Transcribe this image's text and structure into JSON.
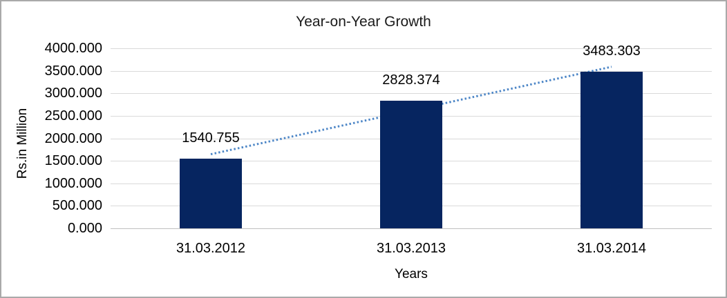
{
  "window": {
    "background_color": "#ffffff",
    "frame_border_color": "#a9a9a9"
  },
  "chart_data": {
    "type": "bar",
    "title": "Year-on-Year Growth",
    "xlabel": "Years",
    "ylabel": "Rs.in Million",
    "categories": [
      "31.03.2012",
      "31.03.2013",
      "31.03.2014"
    ],
    "values": [
      1540.755,
      2828.374,
      3483.303
    ],
    "data_labels": [
      "1540.755",
      "2828.374",
      "3483.303"
    ],
    "ylim": [
      0,
      4000
    ],
    "ytick_step": 500,
    "ytick_labels": [
      "0.000",
      "500.000",
      "1000.000",
      "1500.000",
      "2000.000",
      "2500.000",
      "3000.000",
      "3500.000",
      "4000.000"
    ],
    "grid": true,
    "legend": "none",
    "bar_color": "#062560",
    "gridline_color": "#d9d9d9",
    "axis_line_color": "#bfbfbf",
    "text_color": "#000000",
    "trendline": {
      "type": "linear",
      "style": "dotted",
      "color": "#4e87c7"
    }
  }
}
